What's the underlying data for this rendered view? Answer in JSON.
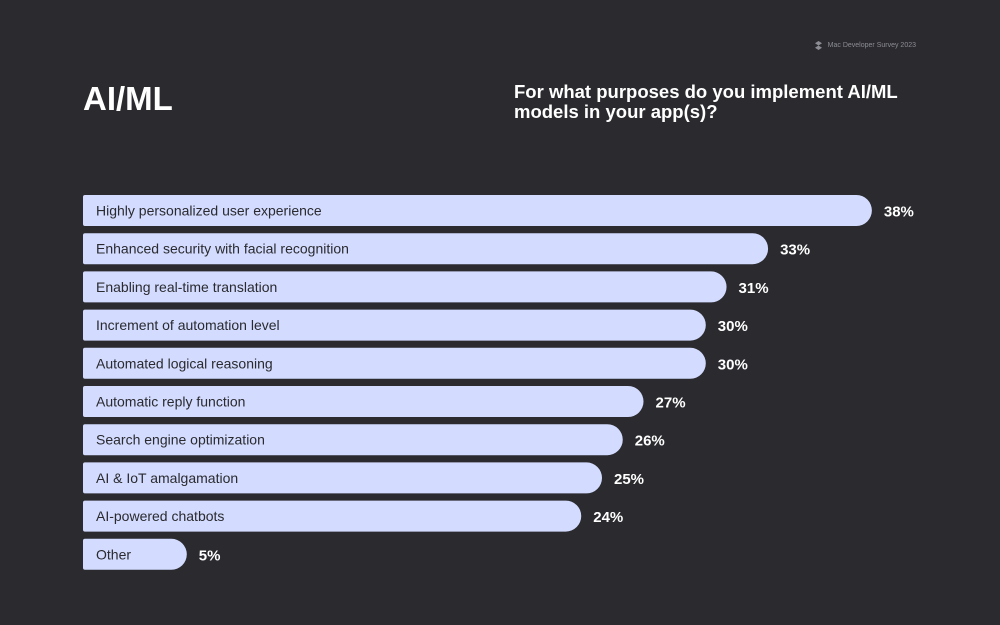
{
  "brand": {
    "text": "Mac Developer Survey 2023",
    "icon": "brand-logo-icon"
  },
  "section_title": "AI/ML",
  "question": "For what purposes do you implement AI/ML models in your app(s)?",
  "colors": {
    "background": "#2a2a2f",
    "bar": "#d3dcff",
    "bar_text": "#2a2a2f",
    "value_text": "#ffffff"
  },
  "chart_data": {
    "type": "bar",
    "orientation": "horizontal",
    "categories": [
      "Highly personalized user experience",
      "Enhanced security with facial recognition",
      "Enabling real-time translation",
      "Increment of automation level",
      "Automated logical reasoning",
      "Automatic reply function",
      "Search engine optimization",
      "AI & IoT amalgamation",
      "AI-powered chatbots",
      "Other"
    ],
    "values": [
      38,
      33,
      31,
      30,
      30,
      27,
      26,
      25,
      24,
      5
    ],
    "value_labels": [
      "38%",
      "33%",
      "31%",
      "30%",
      "30%",
      "27%",
      "26%",
      "25%",
      "24%",
      "5%"
    ],
    "unit": "%",
    "grid": false,
    "legend": "none"
  }
}
